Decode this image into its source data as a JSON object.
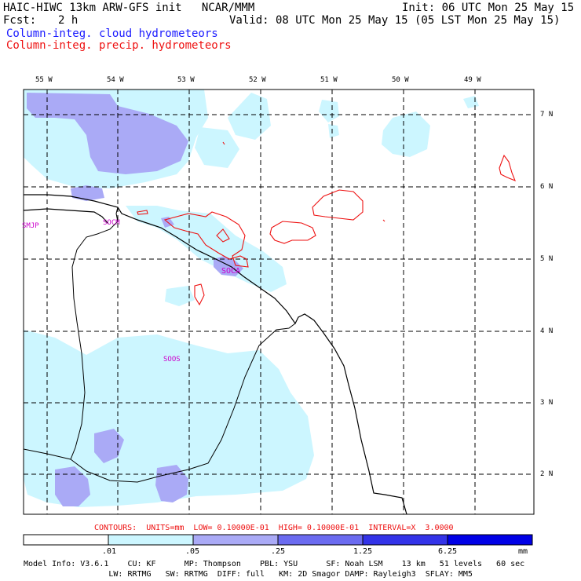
{
  "header": {
    "line1_left": "HAIC-HIWC 13km ARW-GFS init   NCAR/MMM",
    "line1_right": "Init: 06 UTC Mon 25 May 15",
    "fcst_label": "Fcst:",
    "fcst_value": "2 h",
    "valid": "Valid: 08 UTC Mon 25 May 15 (05 LST Mon 25 May 15)",
    "cloud_label": "Column-integ. cloud hydrometeors",
    "precip_label": "Column-integ. precip. hydrometeors"
  },
  "axes": {
    "lon_labels": [
      "55 W",
      "54 W",
      "53 W",
      "52 W",
      "51 W",
      "50 W",
      "49 W"
    ],
    "lat_labels": [
      "7 N",
      "6 N",
      "5 N",
      "4 N",
      "3 N",
      "2 N"
    ]
  },
  "stations": [
    "SMJP",
    "SOCM",
    "SOCA",
    "SOOS"
  ],
  "contours_info": "CONTOURS:  UNITS=mm  LOW= 0.10000E-01  HIGH= 0.10000E-01  INTERVAL=X  3.0000",
  "colorbar": {
    "labels": [
      ".01",
      ".05",
      ".25",
      "1.25",
      "6.25"
    ],
    "units": "mm",
    "colors": [
      "#ffffff",
      "#ccf6ff",
      "#aaaaf6",
      "#6b6bf0",
      "#3333e8",
      "#0000e6"
    ]
  },
  "footer": {
    "line1": "Model Info: V3.6.1    CU: KF      MP: Thompson    PBL: YSU      SF: Noah LSM    13 km   51 levels   60 sec",
    "line2": "                  LW: RRTMG   SW: RRTMG  DIFF: full   KM: 2D Smagor DAMP: Rayleigh3  SFLAY: MM5"
  },
  "colors": {
    "cloud_light": "#ccf6ff",
    "cloud_mid": "#aaaaf6",
    "cloud_dark": "#6b6bf0",
    "precip_contour": "#ee1111",
    "station_label": "#cc00cc"
  }
}
